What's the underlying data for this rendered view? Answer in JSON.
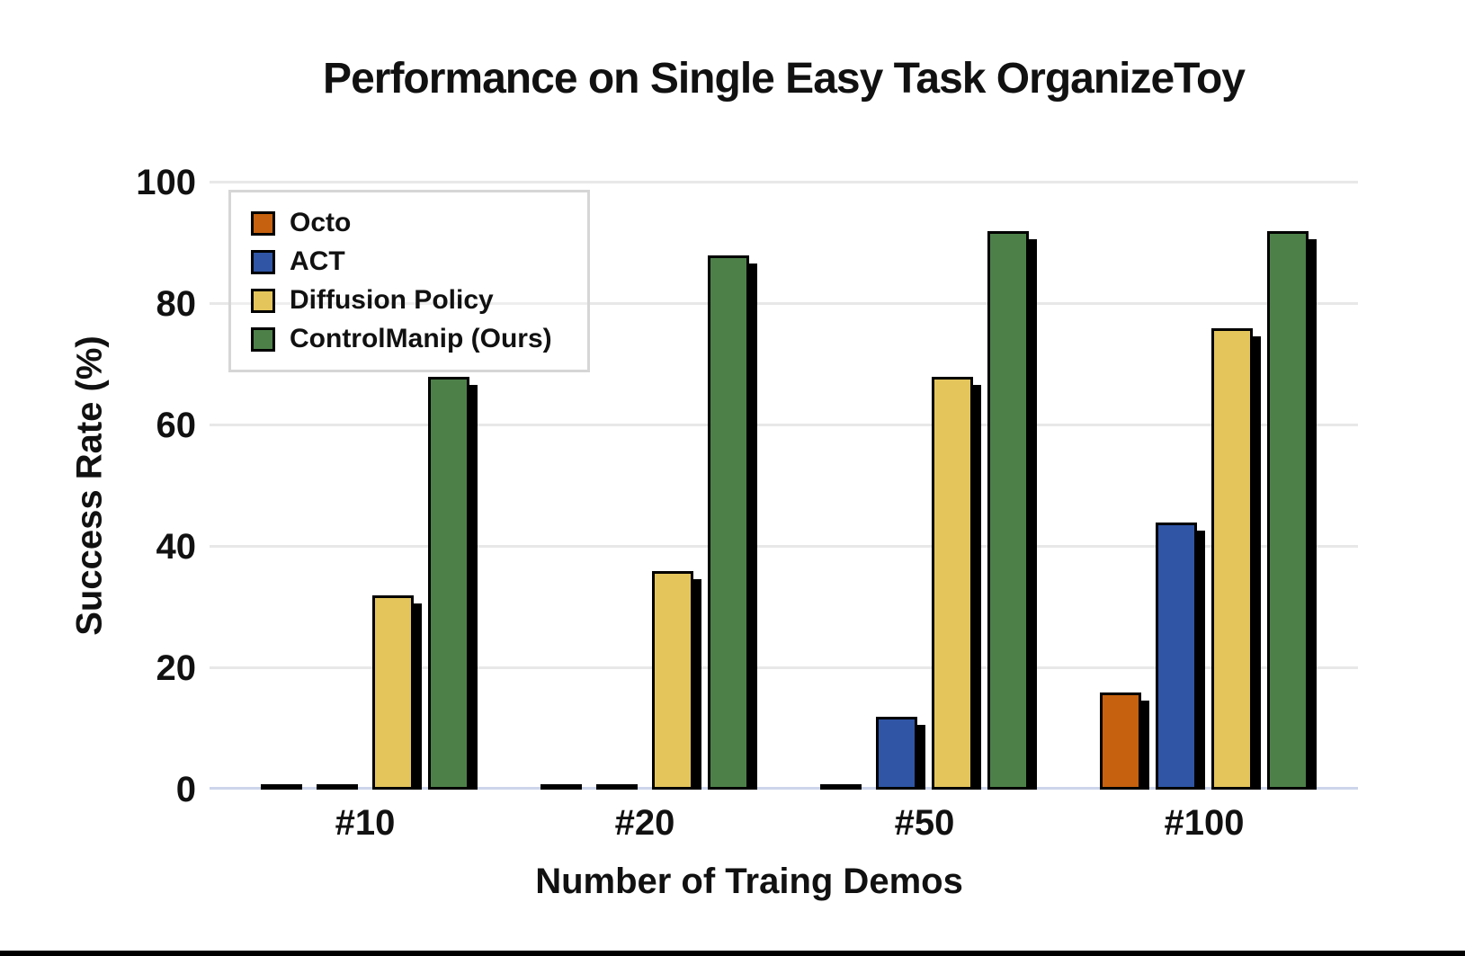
{
  "title": "Performance on Single Easy Task OrganizeToy",
  "axes": {
    "ylabel": "Success Rate (%)",
    "xlabel": "Number of Traing Demos",
    "yticks": [
      0,
      20,
      40,
      60,
      80,
      100
    ],
    "categories": [
      "#10",
      "#20",
      "#50",
      "#100"
    ]
  },
  "legend": {
    "position": "upper left",
    "entries": [
      {
        "label": "Octo",
        "color": "#C5610F"
      },
      {
        "label": "ACT",
        "color": "#2F55A4"
      },
      {
        "label": "Diffusion Policy",
        "color": "#E3C55C"
      },
      {
        "label": "ControlManip (Ours)",
        "color": "#4D8049"
      }
    ]
  },
  "chart_data": {
    "type": "bar",
    "title": "Performance on Single Easy Task OrganizeToy",
    "xlabel": "Number of Traing Demos",
    "ylabel": "Success Rate (%)",
    "categories": [
      "#10",
      "#20",
      "#50",
      "#100"
    ],
    "series": [
      {
        "name": "Octo",
        "color": "#C5610F",
        "values": [
          0,
          0,
          0,
          16
        ]
      },
      {
        "name": "ACT",
        "color": "#2F55A4",
        "values": [
          0,
          0,
          12,
          44
        ]
      },
      {
        "name": "Diffusion Policy",
        "color": "#E3C55C",
        "values": [
          32,
          36,
          68,
          76
        ]
      },
      {
        "name": "ControlManip (Ours)",
        "color": "#4D8049",
        "values": [
          68,
          88,
          92,
          92
        ]
      }
    ],
    "ylim": [
      0,
      100
    ],
    "grid": true,
    "bar_edge_color": "#000000",
    "bar_shadow_color": "#000000",
    "legend_position": "upper left"
  },
  "colors": {
    "background": "#ffffff",
    "gridline": "#e8e8e8",
    "baseline": "#ccd5ea",
    "text": "#111111",
    "legend_border": "#d6d6d6",
    "bottom_rule": "#000000"
  }
}
